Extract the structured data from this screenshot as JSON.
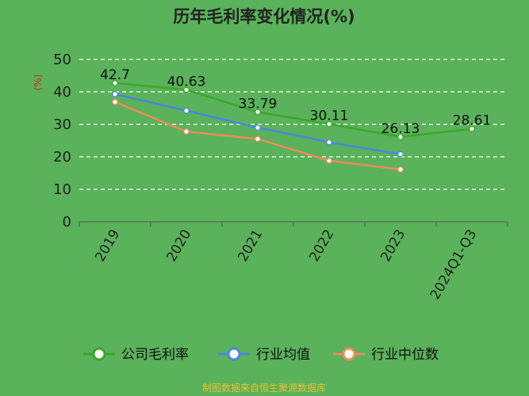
{
  "chart_data": {
    "type": "line",
    "title": "历年毛利率变化情况(%)",
    "ylabel": "(%)",
    "ylim": [
      0,
      50
    ],
    "yticks": [
      0,
      10,
      20,
      30,
      40,
      50
    ],
    "categories": [
      "2019",
      "2020",
      "2021",
      "2022",
      "2023",
      "2024Q1-Q3"
    ],
    "grid": true,
    "legend_position": "bottom",
    "series": [
      {
        "name": "公司毛利率",
        "color": "#3aa829",
        "values": [
          42.7,
          40.63,
          33.79,
          30.11,
          26.13,
          28.61
        ],
        "labels": [
          "42.7",
          "40.63",
          "33.79",
          "30.11",
          "26.13",
          "28.61"
        ]
      },
      {
        "name": "行业均值",
        "color": "#4a86e0",
        "values": [
          39.3,
          34.2,
          29.0,
          24.5,
          20.8,
          null
        ]
      },
      {
        "name": "行业中位数",
        "color": "#ef8a5a",
        "values": [
          36.9,
          27.8,
          25.5,
          18.8,
          16.1,
          null
        ]
      }
    ]
  },
  "source": "制图数据来自恒生聚源数据库"
}
